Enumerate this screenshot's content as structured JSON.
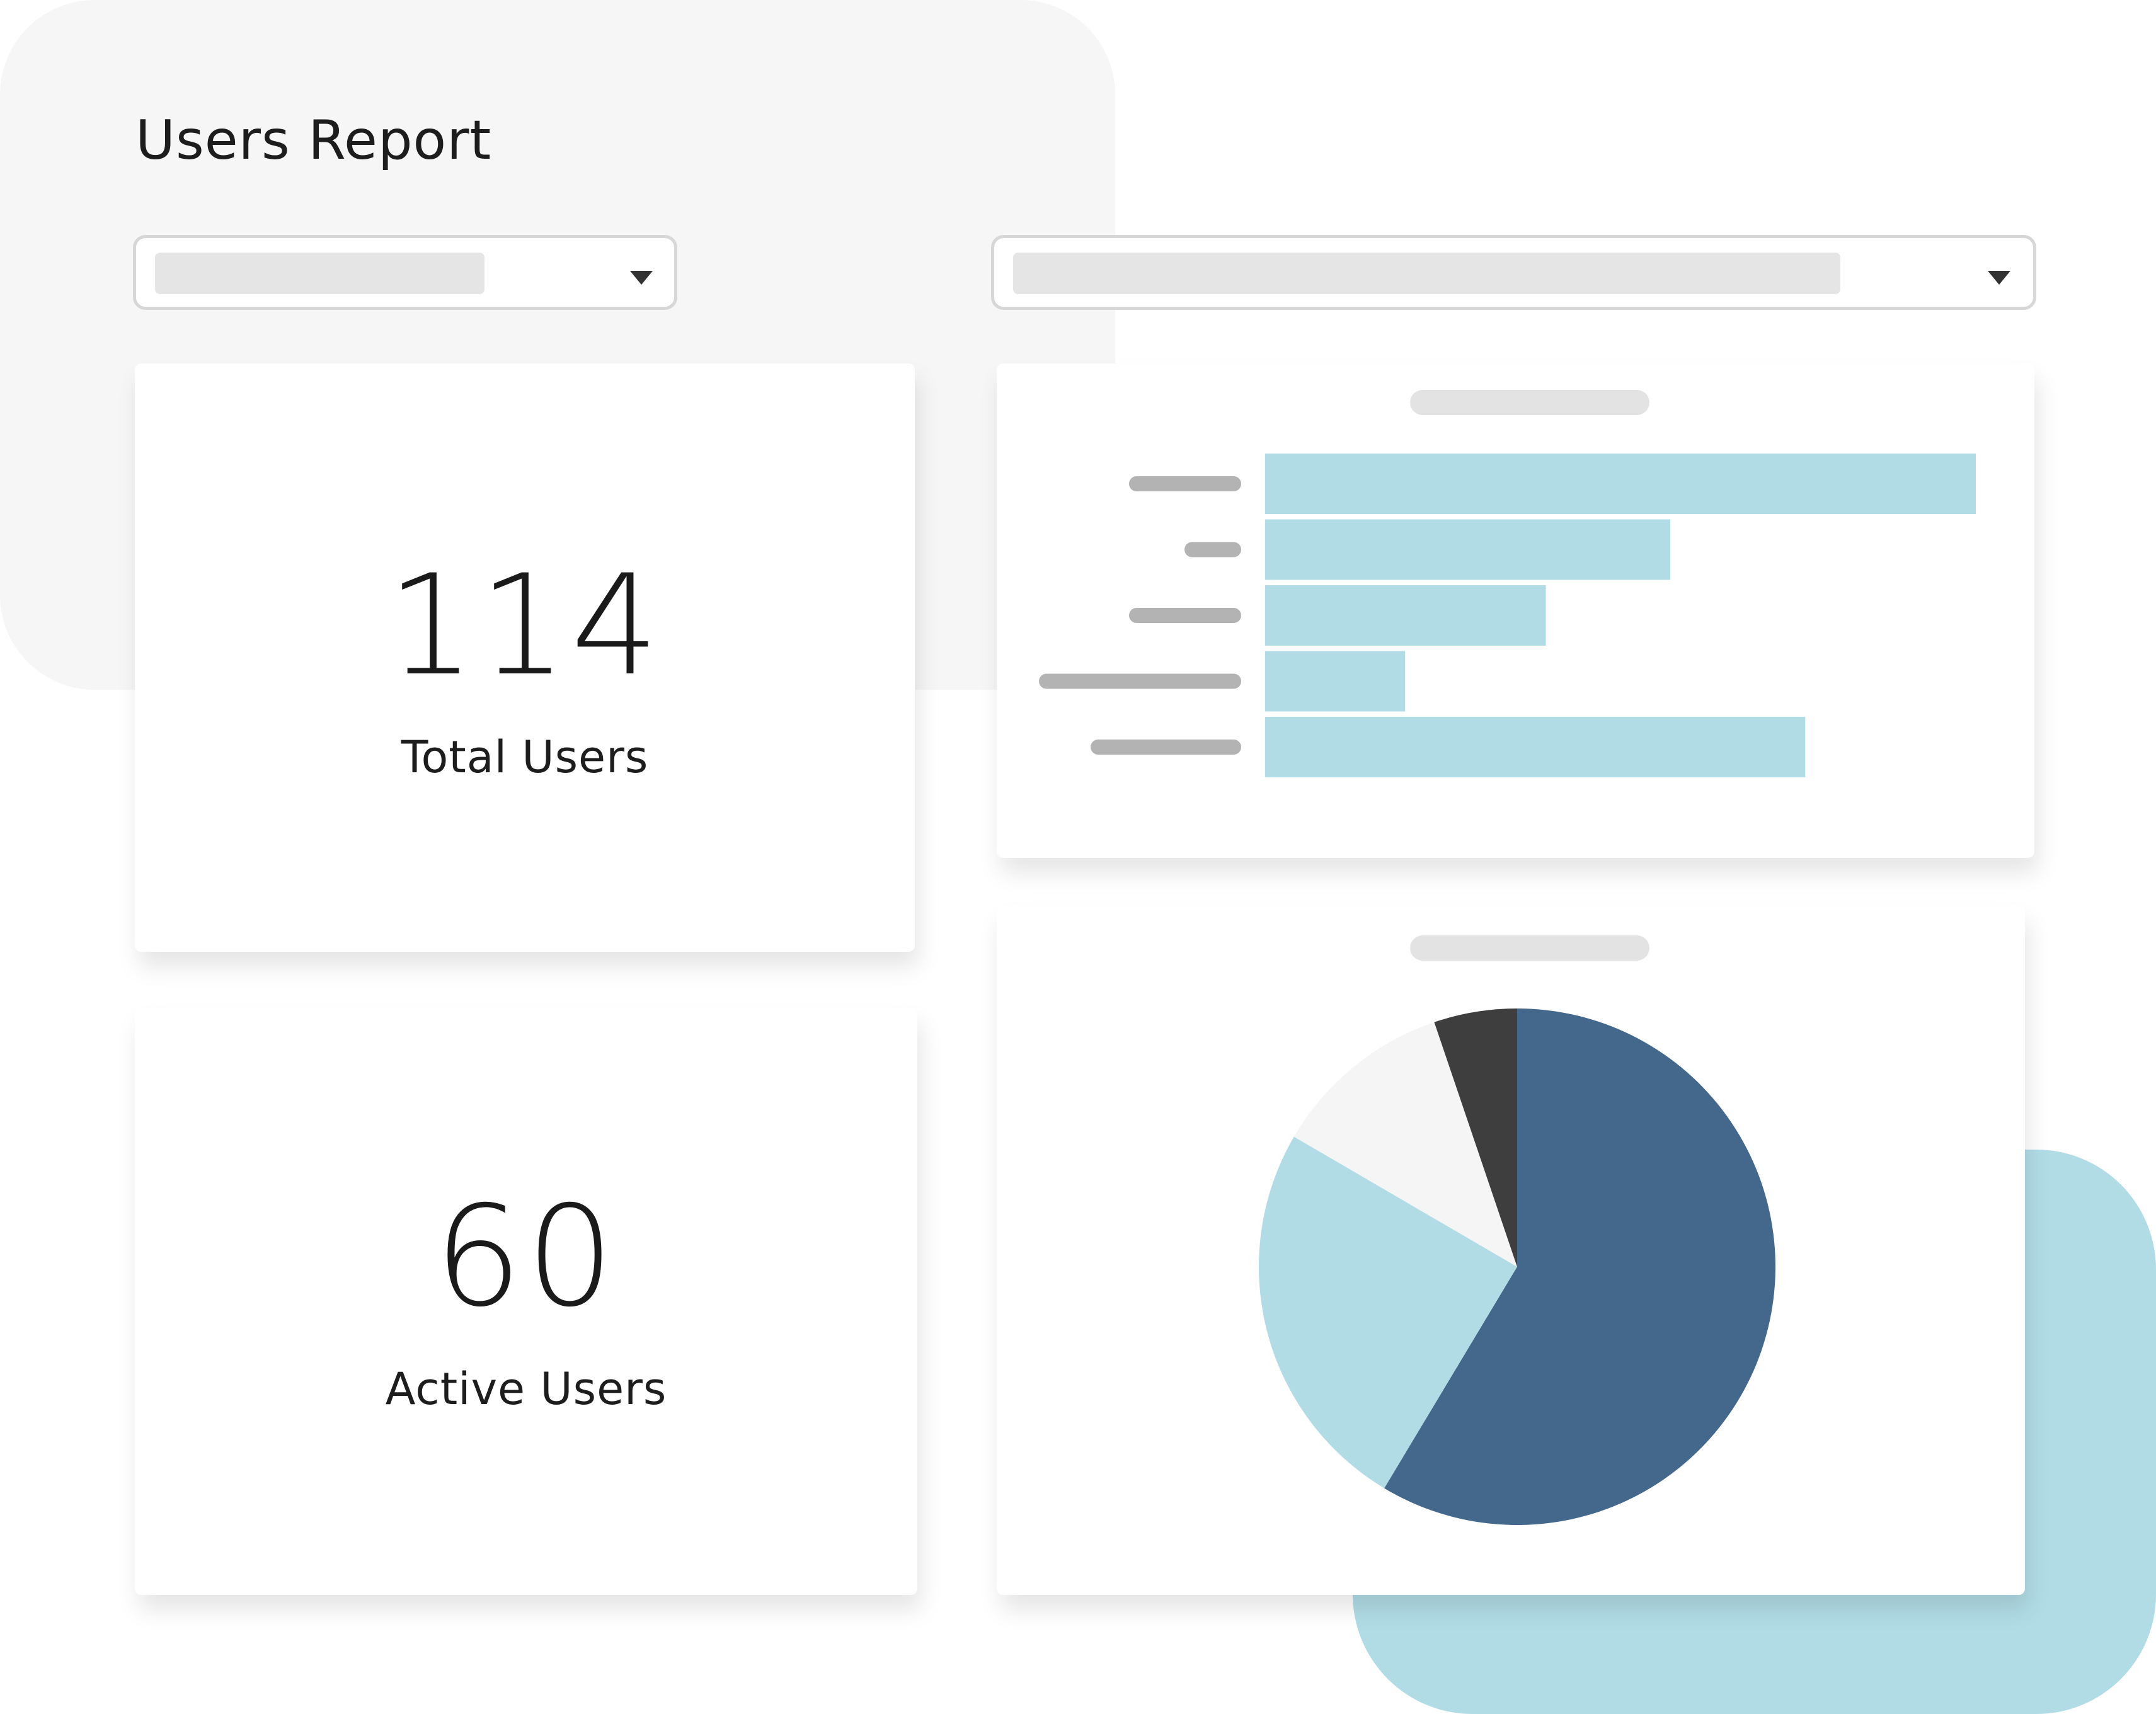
{
  "page": {
    "title": "Users Report"
  },
  "filters": [
    {
      "name": "filter-dropdown-1",
      "value": ""
    },
    {
      "name": "filter-dropdown-2",
      "value": ""
    }
  ],
  "metrics": {
    "total_users": {
      "value": "114",
      "label": "Total Users"
    },
    "active_users": {
      "value": "60",
      "label": "Active Users"
    }
  },
  "colors": {
    "bar": "#b1dce6",
    "label_placeholder": "#b3b3b3",
    "pie_dark_blue": "#44678c",
    "pie_light_blue": "#b1dce6",
    "pie_light_gray": "#f5f5f5",
    "pie_dark_gray": "#3e3e3e",
    "background_gray": "#f6f6f6",
    "background_blue": "#b1dce6"
  },
  "chart_data": [
    {
      "type": "bar",
      "orientation": "horizontal",
      "title": "",
      "categories": [
        "",
        "",
        "",
        "",
        ""
      ],
      "values": [
        100,
        57,
        39.5,
        19.7,
        76
      ],
      "xlim": [
        0,
        100
      ],
      "grid": false
    },
    {
      "type": "pie",
      "title": "",
      "slices": [
        {
          "label": "",
          "value": 58.6,
          "color": "#44678c"
        },
        {
          "label": "",
          "value": 24.8,
          "color": "#b1dce6"
        },
        {
          "label": "",
          "value": 11.4,
          "color": "#f5f5f5"
        },
        {
          "label": "",
          "value": 5.2,
          "color": "#3e3e3e"
        }
      ],
      "start": "top",
      "direction": "clockwise"
    }
  ]
}
